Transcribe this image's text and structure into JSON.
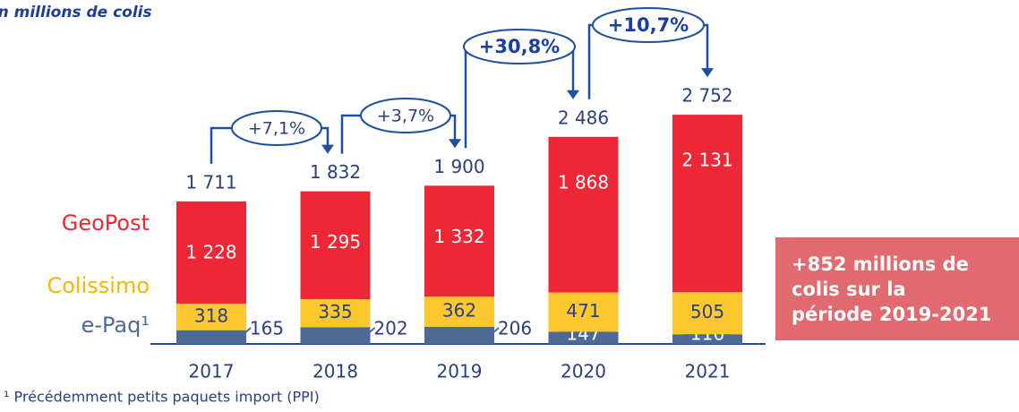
{
  "chart_data": {
    "type": "stacked_bar",
    "title": "En millions de colis",
    "categories": [
      "2017",
      "2018",
      "2019",
      "2020",
      "2021"
    ],
    "series": [
      {
        "name": "e-Paq¹",
        "color": "#4d6a96",
        "values": [
          165,
          202,
          206,
          147,
          116
        ],
        "value_labels": [
          "165",
          "202",
          "206",
          "147",
          "116"
        ]
      },
      {
        "name": "Colissimo",
        "color": "#fdc82f",
        "values": [
          318,
          335,
          362,
          471,
          505
        ],
        "value_labels": [
          "318",
          "335",
          "362",
          "471",
          "505"
        ]
      },
      {
        "name": "GeoPost",
        "color": "#ee2737",
        "values": [
          1228,
          1295,
          1332,
          1868,
          2131
        ],
        "value_labels": [
          "1 228",
          "1 295",
          "1 332",
          "1 868",
          "2 131"
        ]
      }
    ],
    "totals": {
      "values": [
        1711,
        1832,
        1900,
        2486,
        2752
      ],
      "value_labels": [
        "1 711",
        "1 832",
        "1 900",
        "2 486",
        "2 752"
      ]
    },
    "growth": [
      "+7,1%",
      "+3,7%",
      "+30,8%",
      "+10,7%"
    ],
    "callout": [
      "+852 millions de",
      "colis sur la",
      "période 2019-2021"
    ],
    "footnote": "¹ Précédemment petits paquets import (PPI)"
  }
}
